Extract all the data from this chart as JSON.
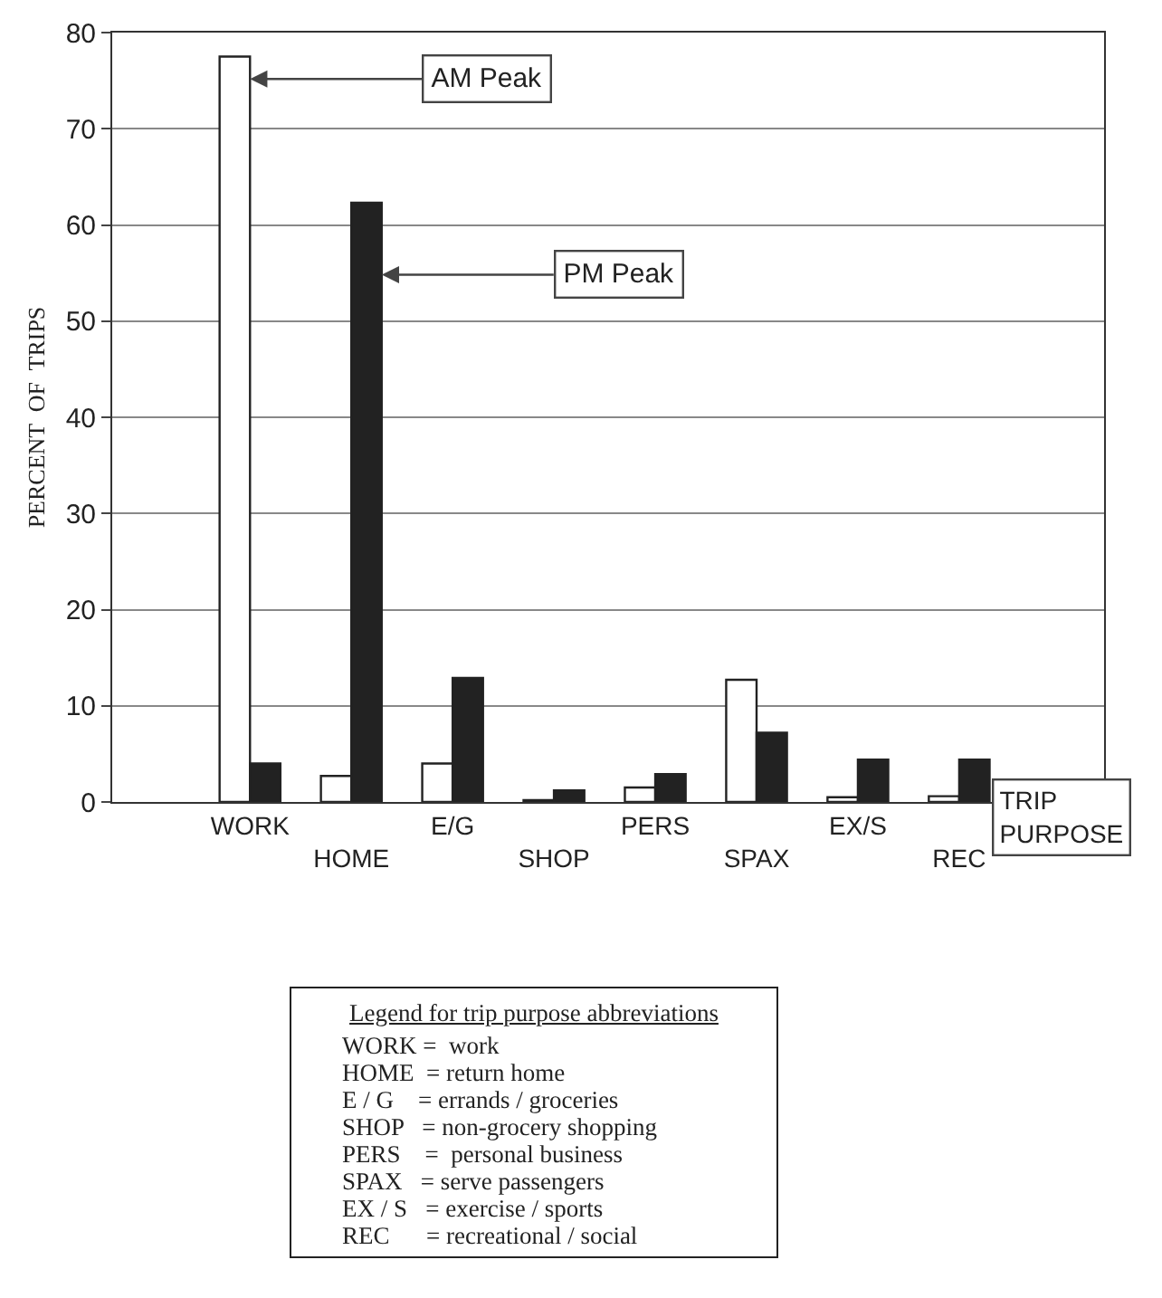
{
  "chart_data": {
    "type": "bar",
    "xlabel": "TRIP PURPOSE",
    "ylabel": "PERCENT  OF  TRIPS",
    "categories": [
      "WORK",
      "HOME",
      "E/G",
      "SHOP",
      "PERS",
      "SPAX",
      "EX/S",
      "REC"
    ],
    "series": [
      {
        "name": "AM Peak",
        "color": "#ffffff",
        "values": [
          77.5,
          2.7,
          4.0,
          0.2,
          1.5,
          12.7,
          0.5,
          0.6
        ]
      },
      {
        "name": "PM Peak",
        "color": "#222222",
        "values": [
          4.0,
          62.3,
          12.9,
          1.2,
          2.9,
          7.2,
          4.4,
          4.4
        ]
      }
    ],
    "ylim": [
      0,
      80
    ],
    "yticks": [
      0,
      10,
      20,
      30,
      40,
      50,
      60,
      70,
      80
    ],
    "grid": "y",
    "legend": false,
    "annotations": [
      "Legend for trip purpose abbreviations",
      "WORK =  work",
      "HOME  = return home",
      "E / G    = errands / groceries",
      "SHOP   = non-grocery shopping",
      "PERS    =  personal business",
      "SPAX   = serve passengers",
      "EX / S   = exercise / sports",
      "REC      = recreational / social"
    ]
  }
}
